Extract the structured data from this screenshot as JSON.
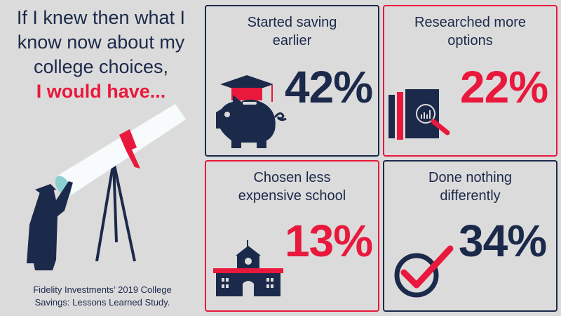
{
  "headline": {
    "lines": [
      "If I knew then what I",
      "know now about my",
      "college choices,"
    ],
    "highlight": "I would have..."
  },
  "source": {
    "lines": [
      "Fidelity Investments’ 2019 College",
      "Savings: Lessons Learned Study."
    ]
  },
  "colors": {
    "navy": "#1b2a4a",
    "red": "#e8193c",
    "background": "#dcdbdb"
  },
  "panels": [
    {
      "label_lines": [
        "Started saving",
        "earlier"
      ],
      "percent": "42%",
      "icon": "piggy-bank-graduation-cap-icon"
    },
    {
      "label_lines": [
        "Researched more",
        "options"
      ],
      "percent": "22%",
      "icon": "document-magnifier-icon"
    },
    {
      "label_lines": [
        "Chosen less",
        "expensive school"
      ],
      "percent": "13%",
      "icon": "school-building-icon"
    },
    {
      "label_lines": [
        "Done nothing",
        "differently"
      ],
      "percent": "34%",
      "icon": "checkmark-icon"
    }
  ]
}
